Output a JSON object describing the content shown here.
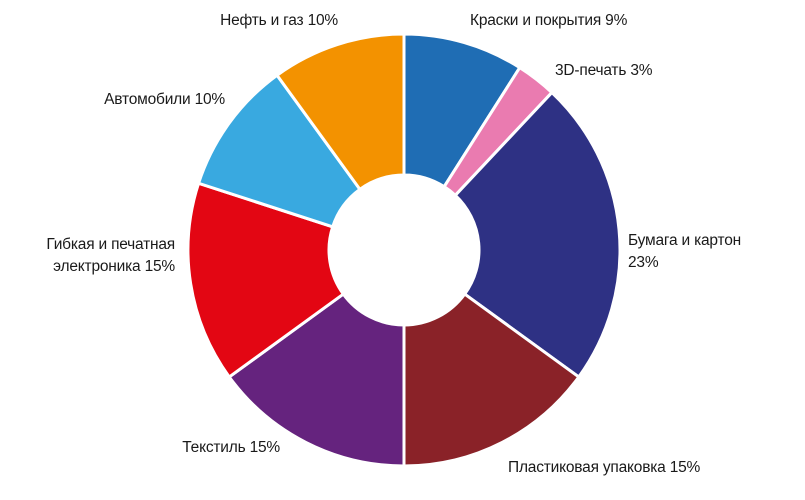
{
  "chart_data": {
    "type": "donut",
    "categories": [
      "Краски и покрытия",
      "3D-печать",
      "Бумага и картон",
      "Пластиковая упаковка",
      "Текстиль",
      "Гибкая и печатная электроника",
      "Автомобили",
      "Нефть и газ"
    ],
    "values": [
      9,
      3,
      23,
      15,
      15,
      15,
      10,
      10
    ],
    "value_labels": [
      "9%",
      "3%",
      "23%",
      "15%",
      "15%",
      "15%",
      "10%",
      "10%"
    ],
    "colors": [
      "#1f6db4",
      "#ea7bb0",
      "#2e3184",
      "#8a2228",
      "#65237e",
      "#e30613",
      "#39a9e0",
      "#f39200"
    ]
  }
}
